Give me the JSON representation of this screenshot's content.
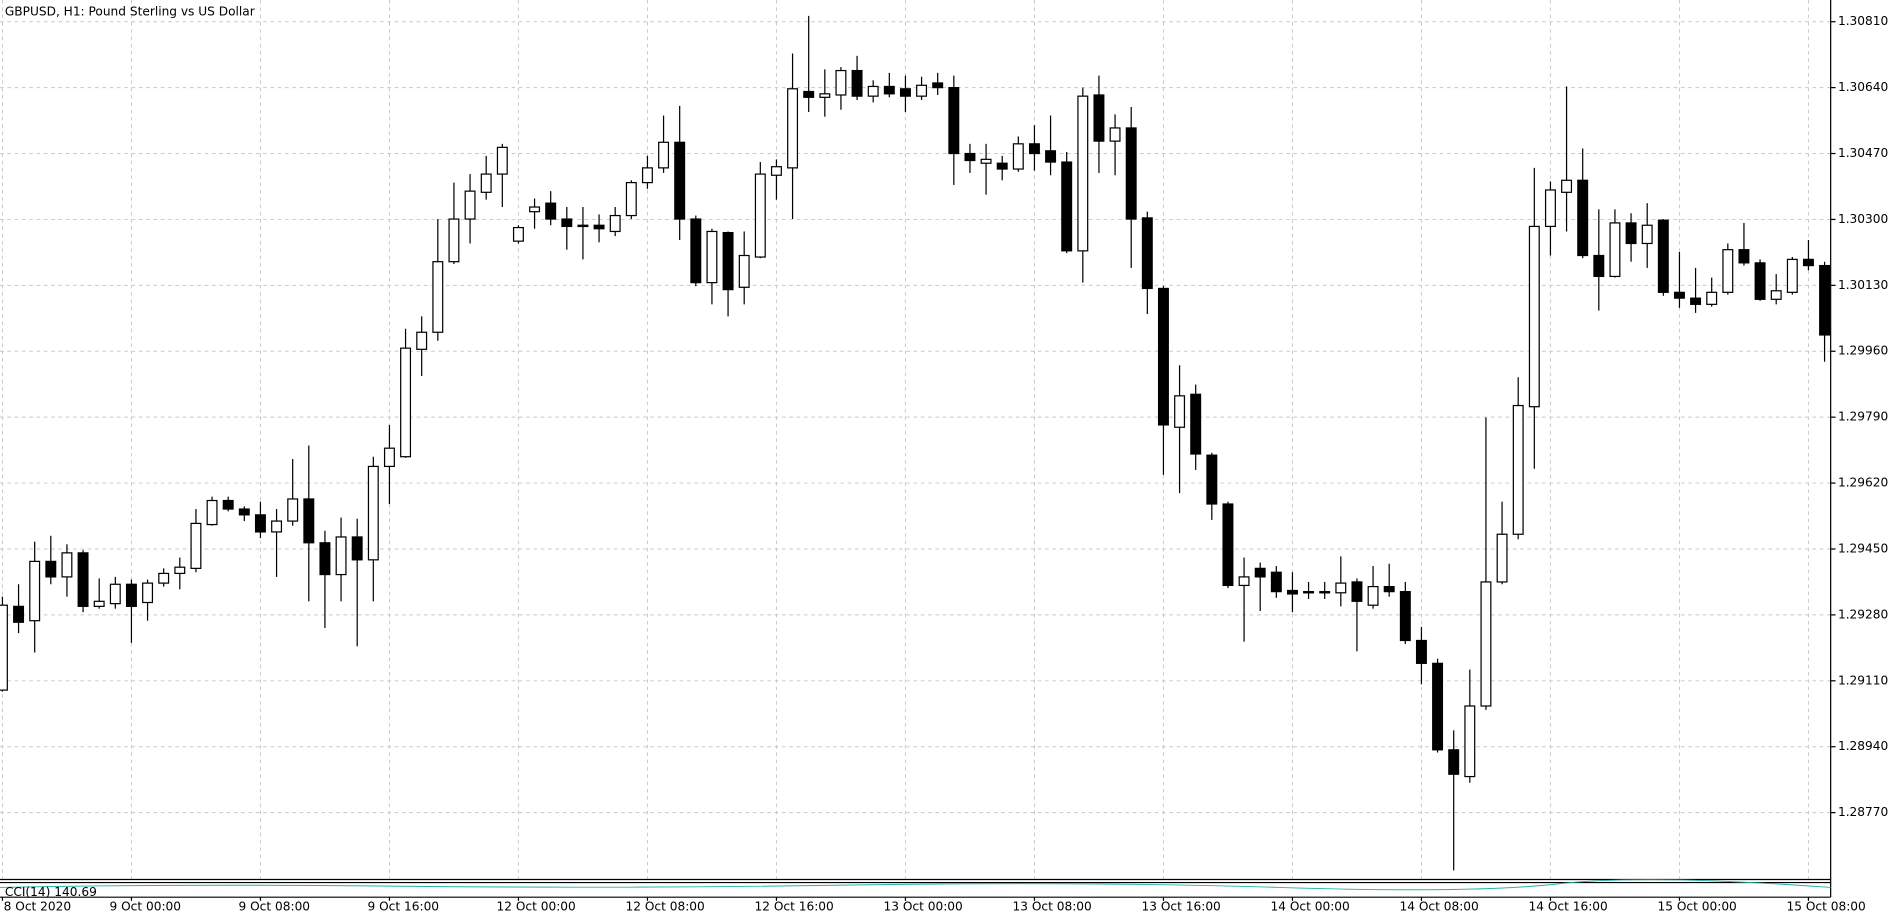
{
  "chart_data": {
    "type": "candlestick",
    "title": "GBPUSD, H1:  Pound Sterling vs US Dollar",
    "indicator": {
      "label": "CCI(14) 140.69"
    },
    "categories": [
      "8 Oct 2020",
      null,
      null,
      null,
      null,
      null,
      null,
      null,
      "9 Oct 00:00",
      null,
      null,
      null,
      null,
      null,
      null,
      null,
      "9 Oct 08:00",
      null,
      null,
      null,
      null,
      null,
      null,
      null,
      "9 Oct 16:00",
      null,
      null,
      null,
      null,
      null,
      null,
      null,
      "12 Oct 00:00",
      null,
      null,
      null,
      null,
      null,
      null,
      null,
      "12 Oct 08:00",
      null,
      null,
      null,
      null,
      null,
      null,
      null,
      "12 Oct 16:00",
      null,
      null,
      null,
      null,
      null,
      null,
      null,
      "13 Oct 00:00",
      null,
      null,
      null,
      null,
      null,
      null,
      null,
      "13 Oct 08:00",
      null,
      null,
      null,
      null,
      null,
      null,
      null,
      "13 Oct 16:00",
      null,
      null,
      null,
      null,
      null,
      null,
      null,
      "14 Oct 00:00",
      null,
      null,
      null,
      null,
      null,
      null,
      null,
      "14 Oct 08:00",
      null,
      null,
      null,
      null,
      null,
      null,
      null,
      "14 Oct 16:00",
      null,
      null,
      null,
      null,
      null,
      null,
      null,
      "15 Oct 00:00",
      null,
      null,
      null,
      null,
      null,
      null,
      null,
      "15 Oct 08:00",
      null
    ],
    "ohlc": [
      [
        1.29086,
        1.29327,
        1.29082,
        1.29305
      ],
      [
        1.29302,
        1.29359,
        1.29233,
        1.29261
      ],
      [
        1.29265,
        1.29469,
        1.29183,
        1.29418
      ],
      [
        1.29418,
        1.29484,
        1.29359,
        1.29378
      ],
      [
        1.29378,
        1.29462,
        1.29327,
        1.2944
      ],
      [
        1.2944,
        1.29447,
        1.29287,
        1.29302
      ],
      [
        1.29302,
        1.29374,
        1.29296,
        1.29315
      ],
      [
        1.29309,
        1.29378,
        1.29296,
        1.29359
      ],
      [
        1.29359,
        1.29371,
        1.29208,
        1.29302
      ],
      [
        1.29312,
        1.29371,
        1.29265,
        1.29362
      ],
      [
        1.29362,
        1.294,
        1.29353,
        1.29387
      ],
      [
        1.29387,
        1.29428,
        1.29346,
        1.29403
      ],
      [
        1.294,
        1.29553,
        1.2939,
        1.29516
      ],
      [
        1.29513,
        1.29585,
        1.2951,
        1.29575
      ],
      [
        1.29575,
        1.29585,
        1.29547,
        1.29553
      ],
      [
        1.29553,
        1.2956,
        1.29522,
        1.29538
      ],
      [
        1.29538,
        1.29572,
        1.29478,
        1.29494
      ],
      [
        1.29494,
        1.29553,
        1.29378,
        1.29522
      ],
      [
        1.29522,
        1.29682,
        1.2951,
        1.29579
      ],
      [
        1.29579,
        1.29717,
        1.29315,
        1.29466
      ],
      [
        1.29466,
        1.29497,
        1.29246,
        1.29384
      ],
      [
        1.29384,
        1.29531,
        1.29315,
        1.29481
      ],
      [
        1.29481,
        1.29528,
        1.29199,
        1.29422
      ],
      [
        1.29422,
        1.29688,
        1.29315,
        1.29663
      ],
      [
        1.29663,
        1.2977,
        1.29566,
        1.2971
      ],
      [
        1.29688,
        1.30018,
        1.29685,
        1.29968
      ],
      [
        1.29965,
        1.3005,
        1.29896,
        1.30009
      ],
      [
        1.30009,
        1.30301,
        1.29987,
        1.30191
      ],
      [
        1.30191,
        1.30395,
        1.30185,
        1.30301
      ],
      [
        1.30301,
        1.30417,
        1.30238,
        1.30373
      ],
      [
        1.3037,
        1.30464,
        1.30351,
        1.30417
      ],
      [
        1.30417,
        1.30495,
        1.30332,
        1.30486
      ],
      [
        1.30244,
        1.30285,
        1.30238,
        1.30279
      ],
      [
        1.3032,
        1.30354,
        1.30276,
        1.30332
      ],
      [
        1.30342,
        1.30373,
        1.30285,
        1.30301
      ],
      [
        1.30301,
        1.30332,
        1.30222,
        1.30282
      ],
      [
        1.30285,
        1.30332,
        1.30197,
        1.30282
      ],
      [
        1.30285,
        1.30313,
        1.30241,
        1.30276
      ],
      [
        1.30269,
        1.30332,
        1.30257,
        1.3031
      ],
      [
        1.3031,
        1.30401,
        1.30301,
        1.30395
      ],
      [
        1.30395,
        1.30464,
        1.30379,
        1.30433
      ],
      [
        1.30433,
        1.30568,
        1.3042,
        1.30499
      ],
      [
        1.30499,
        1.30593,
        1.30247,
        1.30301
      ],
      [
        1.30301,
        1.3031,
        1.30128,
        1.30137
      ],
      [
        1.30137,
        1.30276,
        1.30081,
        1.30269
      ],
      [
        1.30266,
        1.30269,
        1.3005,
        1.30119
      ],
      [
        1.30125,
        1.30269,
        1.30081,
        1.30207
      ],
      [
        1.30203,
        1.30448,
        1.302,
        1.30417
      ],
      [
        1.30414,
        1.30455,
        1.30351,
        1.30436
      ],
      [
        1.30433,
        1.30728,
        1.30301,
        1.30637
      ],
      [
        1.3063,
        1.30825,
        1.30577,
        1.30615
      ],
      [
        1.30615,
        1.30687,
        1.30565,
        1.30624
      ],
      [
        1.30621,
        1.30693,
        1.30583,
        1.30684
      ],
      [
        1.30684,
        1.30722,
        1.30608,
        1.30618
      ],
      [
        1.30618,
        1.30659,
        1.30602,
        1.30643
      ],
      [
        1.30643,
        1.30678,
        1.30615,
        1.30624
      ],
      [
        1.30637,
        1.30671,
        1.30577,
        1.30618
      ],
      [
        1.30618,
        1.30668,
        1.30608,
        1.30646
      ],
      [
        1.30652,
        1.30678,
        1.30621,
        1.3064
      ],
      [
        1.3064,
        1.30671,
        1.30389,
        1.3047
      ],
      [
        1.3047,
        1.30495,
        1.3042,
        1.30452
      ],
      [
        1.30445,
        1.30495,
        1.30364,
        1.30455
      ],
      [
        1.30445,
        1.30464,
        1.30401,
        1.3043
      ],
      [
        1.3043,
        1.30514,
        1.30423,
        1.30495
      ],
      [
        1.30495,
        1.30543,
        1.30426,
        1.3047
      ],
      [
        1.30477,
        1.30568,
        1.30414,
        1.30448
      ],
      [
        1.30448,
        1.30474,
        1.30213,
        1.30219
      ],
      [
        1.30219,
        1.3064,
        1.30137,
        1.30618
      ],
      [
        1.30621,
        1.30671,
        1.3042,
        1.30502
      ],
      [
        1.30502,
        1.30571,
        1.30414,
        1.30536
      ],
      [
        1.30536,
        1.3059,
        1.30175,
        1.30301
      ],
      [
        1.30304,
        1.3032,
        1.30056,
        1.30122
      ],
      [
        1.30122,
        1.30128,
        1.29641,
        1.2977
      ],
      [
        1.29764,
        1.29924,
        1.29594,
        1.29845
      ],
      [
        1.29849,
        1.29874,
        1.29654,
        1.29695
      ],
      [
        1.29692,
        1.29698,
        1.29525,
        1.29566
      ],
      [
        1.29566,
        1.29572,
        1.29349,
        1.29356
      ],
      [
        1.29356,
        1.29428,
        1.29211,
        1.29378
      ],
      [
        1.294,
        1.29415,
        1.2929,
        1.29378
      ],
      [
        1.2939,
        1.29406,
        1.29324,
        1.2934
      ],
      [
        1.29343,
        1.2939,
        1.29287,
        1.29334
      ],
      [
        1.2934,
        1.29365,
        1.29321,
        1.29337
      ],
      [
        1.2934,
        1.29365,
        1.29321,
        1.29337
      ],
      [
        1.29337,
        1.29431,
        1.29302,
        1.29362
      ],
      [
        1.29365,
        1.29374,
        1.29186,
        1.29315
      ],
      [
        1.29305,
        1.29406,
        1.29296,
        1.29353
      ],
      [
        1.29353,
        1.29412,
        1.29327,
        1.2934
      ],
      [
        1.2934,
        1.29365,
        1.29205,
        1.29214
      ],
      [
        1.29214,
        1.29249,
        1.29101,
        1.29155
      ],
      [
        1.29155,
        1.29167,
        1.28925,
        1.28932
      ],
      [
        1.28932,
        1.28982,
        1.28621,
        1.28869
      ],
      [
        1.28863,
        1.29139,
        1.28847,
        1.29045
      ],
      [
        1.29045,
        1.29789,
        1.29035,
        1.29365
      ],
      [
        1.29365,
        1.29572,
        1.29359,
        1.29488
      ],
      [
        1.29488,
        1.29893,
        1.29475,
        1.2982
      ],
      [
        1.29817,
        1.30433,
        1.29657,
        1.30282
      ],
      [
        1.30282,
        1.30398,
        1.30207,
        1.30376
      ],
      [
        1.3037,
        1.30643,
        1.30269,
        1.30401
      ],
      [
        1.30401,
        1.30483,
        1.302,
        1.30207
      ],
      [
        1.30207,
        1.30326,
        1.30065,
        1.30153
      ],
      [
        1.30153,
        1.30326,
        1.3015,
        1.30291
      ],
      [
        1.30291,
        1.30316,
        1.30191,
        1.30238
      ],
      [
        1.30238,
        1.30342,
        1.30175,
        1.30285
      ],
      [
        1.30298,
        1.30301,
        1.30103,
        1.30112
      ],
      [
        1.30112,
        1.30216,
        1.30072,
        1.30097
      ],
      [
        1.30097,
        1.30175,
        1.30059,
        1.30081
      ],
      [
        1.30081,
        1.3015,
        1.30075,
        1.30112
      ],
      [
        1.30112,
        1.30238,
        1.30106,
        1.30222
      ],
      [
        1.30222,
        1.30291,
        1.30181,
        1.30188
      ],
      [
        1.30188,
        1.30197,
        1.3009,
        1.30094
      ],
      [
        1.30094,
        1.30159,
        1.30081,
        1.30116
      ],
      [
        1.30112,
        1.30203,
        1.30106,
        1.30197
      ],
      [
        1.30197,
        1.30247,
        1.30169,
        1.30181
      ],
      [
        1.30181,
        1.30191,
        1.29933,
        1.30002
      ]
    ],
    "bull_color": "#ffffff",
    "bear_color": "#000000",
    "ylim": [
      1.28599,
      1.30866
    ],
    "yticks": [
      {
        "value": 1.3081,
        "label": "1.30810"
      },
      {
        "value": 1.3064,
        "label": "1.30640"
      },
      {
        "value": 1.3047,
        "label": "1.30470"
      },
      {
        "value": 1.303,
        "label": "1.30300"
      },
      {
        "value": 1.3013,
        "label": "1.30130"
      },
      {
        "value": 1.2996,
        "label": "1.29960"
      },
      {
        "value": 1.2979,
        "label": "1.29790"
      },
      {
        "value": 1.2962,
        "label": "1.29620"
      },
      {
        "value": 1.2945,
        "label": "1.29450"
      },
      {
        "value": 1.2928,
        "label": "1.29280"
      },
      {
        "value": 1.2911,
        "label": "1.29110"
      },
      {
        "value": 1.2894,
        "label": "1.28940"
      },
      {
        "value": 1.2877,
        "label": "1.28770"
      }
    ],
    "grid": true
  }
}
